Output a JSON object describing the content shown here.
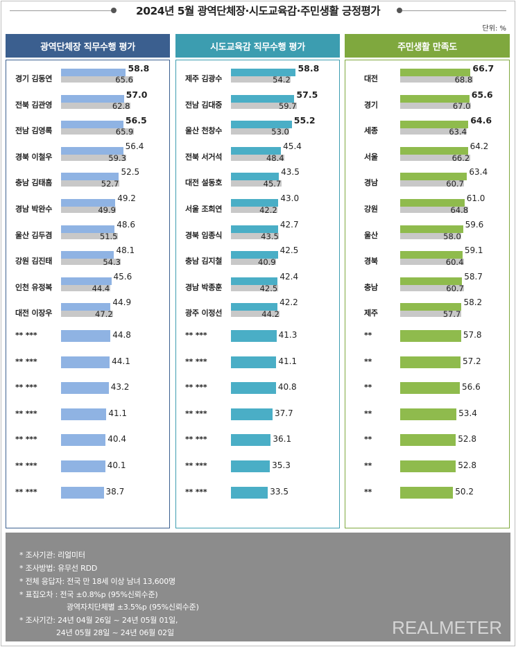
{
  "title": "2024년 5월 광역단체장·시도교육감·주민생활 긍정평가",
  "unit": "단위: %",
  "colors": {
    "panel1_head": "#3b5f8f",
    "panel2_head": "#3c9db0",
    "panel3_head": "#7fa83e",
    "panel1_bar": "#8fb3e3",
    "panel2_bar": "#4aaec6",
    "panel3_bar": "#8fbb4d",
    "prev_bar": "#c8c8c8"
  },
  "chart_data": [
    {
      "type": "bar",
      "title": "광역단체장 직무수행 평가",
      "categories": [
        "경기 김동연",
        "전북 김관영",
        "전남 김영록",
        "경북 이철우",
        "충남 김태흠",
        "경남 박완수",
        "울산 김두겸",
        "강원 김진태",
        "인천 유정복",
        "대전 이장우",
        "** ***",
        "** ***",
        "** ***",
        "** ***",
        "** ***",
        "** ***",
        "** ***"
      ],
      "series": [
        {
          "values": [
            58.8,
            57.0,
            56.5,
            56.4,
            52.5,
            49.2,
            48.6,
            48.1,
            45.6,
            44.9,
            44.8,
            44.1,
            43.2,
            41.1,
            40.4,
            40.1,
            38.7
          ]
        },
        {
          "values": [
            65.6,
            62.8,
            65.9,
            59.3,
            52.7,
            49.9,
            51.5,
            54.3,
            44.4,
            47.2,
            null,
            null,
            null,
            null,
            null,
            null,
            null
          ]
        }
      ],
      "bold_top": 3
    },
    {
      "type": "bar",
      "title": "시도교육감 직무수행 평가",
      "categories": [
        "제주 김광수",
        "전남 김대중",
        "울산 천창수",
        "전북 서거석",
        "대전 설동호",
        "서울 조희연",
        "경북 임종식",
        "충남 김지철",
        "경남 박종훈",
        "광주 이정선",
        "** ***",
        "** ***",
        "** ***",
        "** ***",
        "** ***",
        "** ***",
        "** ***"
      ],
      "series": [
        {
          "values": [
            58.8,
            57.5,
            55.2,
            45.4,
            43.5,
            43.0,
            42.7,
            42.5,
            42.4,
            42.2,
            41.3,
            41.1,
            40.8,
            37.7,
            36.1,
            35.3,
            33.5
          ]
        },
        {
          "values": [
            54.2,
            59.7,
            53.0,
            48.4,
            45.7,
            42.2,
            43.5,
            40.9,
            42.5,
            44.2,
            null,
            null,
            null,
            null,
            null,
            null,
            null
          ]
        }
      ],
      "bold_top": 3
    },
    {
      "type": "bar",
      "title": "주민생활 만족도",
      "categories": [
        "대전",
        "경기",
        "세종",
        "서울",
        "경남",
        "강원",
        "울산",
        "경북",
        "충남",
        "제주",
        "**",
        "**",
        "**",
        "**",
        "**",
        "**",
        "**"
      ],
      "series": [
        {
          "values": [
            66.7,
            65.6,
            64.6,
            64.2,
            63.4,
            61.0,
            59.6,
            59.1,
            58.7,
            58.2,
            57.8,
            57.2,
            56.6,
            53.4,
            52.8,
            52.8,
            50.2
          ]
        },
        {
          "values": [
            68.8,
            67.0,
            63.4,
            66.2,
            60.7,
            64.8,
            58.0,
            60.4,
            60.7,
            57.7,
            null,
            null,
            null,
            null,
            null,
            null,
            null
          ]
        }
      ],
      "bold_top": 3
    }
  ],
  "notes": [
    "* 조사기관: 리얼미터",
    "* 조사방법: 유무선 RDD",
    "* 전체 응답자: 전국 만 18세 이상 남녀 13,600명",
    "* 표집오차 : 전국 ±0.8%p (95%신뢰수준)",
    "광역자치단체별 ±3.5%p (95%신뢰수준)",
    "* 조사기간: 24년 04월 26일 ~ 24년 05월 01일,",
    "24년 05월 28일 ~ 24년 06월 02일"
  ],
  "brand": "REALMETER"
}
